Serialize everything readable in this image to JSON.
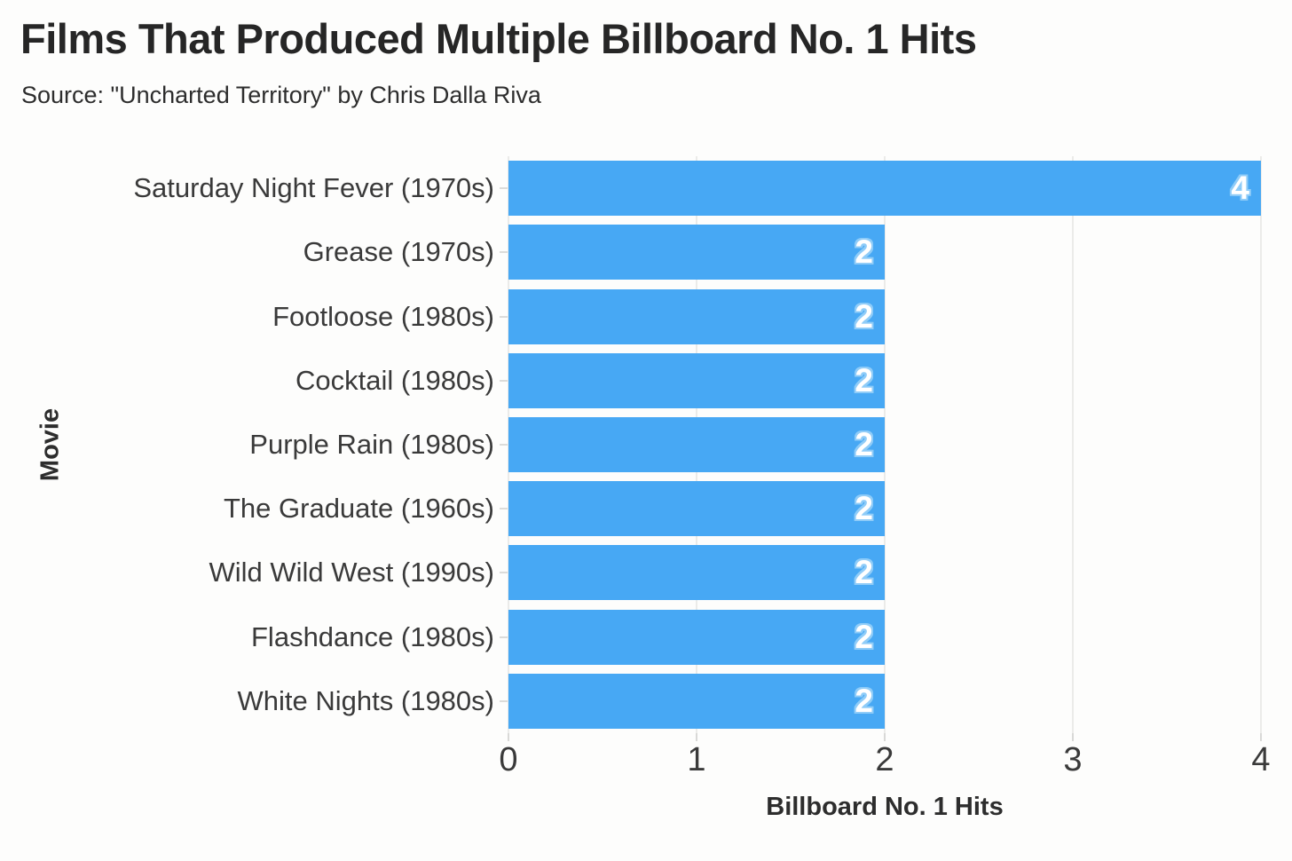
{
  "header": {
    "title": "Films That Produced Multiple Billboard No. 1 Hits",
    "subtitle": "Source: \"Uncharted Territory\" by Chris Dalla Riva"
  },
  "chart_data": {
    "type": "bar",
    "orientation": "horizontal",
    "title": "Films That Produced Multiple Billboard No. 1 Hits",
    "subtitle": "Source: \"Uncharted Territory\" by Chris Dalla Riva",
    "categories": [
      "Saturday Night Fever (1970s)",
      "Grease (1970s)",
      "Footloose (1980s)",
      "Cocktail (1980s)",
      "Purple Rain (1980s)",
      "The Graduate (1960s)",
      "Wild Wild West (1990s)",
      "Flashdance (1980s)",
      "White Nights (1980s)"
    ],
    "values": [
      4,
      2,
      2,
      2,
      2,
      2,
      2,
      2,
      2
    ],
    "xlabel": "Billboard No. 1 Hits",
    "ylabel": "Movie",
    "xlim": [
      0,
      4
    ],
    "xticks": [
      0,
      1,
      2,
      3,
      4
    ],
    "grid": "vertical-only",
    "legend": "none",
    "colors": {
      "bar": "#47a8f4",
      "value_label_text": "#ffffff",
      "value_label_halo": "#8fccf8",
      "gridline": "#ebebe9",
      "tick_mark": "#d9d9d7",
      "title_text": "#262626",
      "label_text": "#3a3a3a"
    }
  }
}
